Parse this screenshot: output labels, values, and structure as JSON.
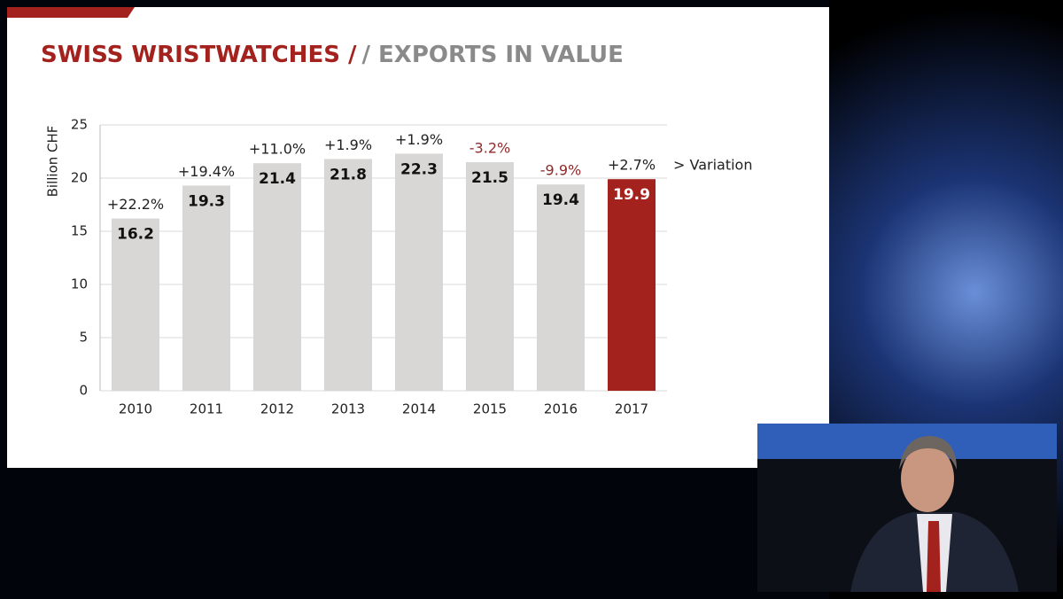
{
  "chart_data": {
    "type": "bar",
    "title": "SWISS WRISTWATCHES /",
    "subtitle": "/ EXPORTS IN VALUE",
    "y_label": "Billion CHF",
    "categories": [
      "2010",
      "2011",
      "2012",
      "2013",
      "2014",
      "2015",
      "2016",
      "2017"
    ],
    "values": [
      16.2,
      19.3,
      21.4,
      21.8,
      22.3,
      21.5,
      19.4,
      19.9
    ],
    "colors": [
      "#d9d7d5",
      "#d9d7d5",
      "#d9d7d5",
      "#d9d7d5",
      "#d9d7d5",
      "#d9d7d5",
      "#d9d7d5",
      "#a3221e"
    ],
    "variation_labels": [
      "+22.2%",
      "+19.4%",
      "+11.0%",
      "+1.9%",
      "+1.9%",
      "-3.2%",
      "-9.9%",
      "+2.7%"
    ],
    "variation_legend": "> Variation",
    "negative_color": "#8e2a2a",
    "ylim": [
      0,
      25
    ],
    "yticks": [
      0,
      5,
      10,
      15,
      20,
      25
    ],
    "grid": true
  }
}
